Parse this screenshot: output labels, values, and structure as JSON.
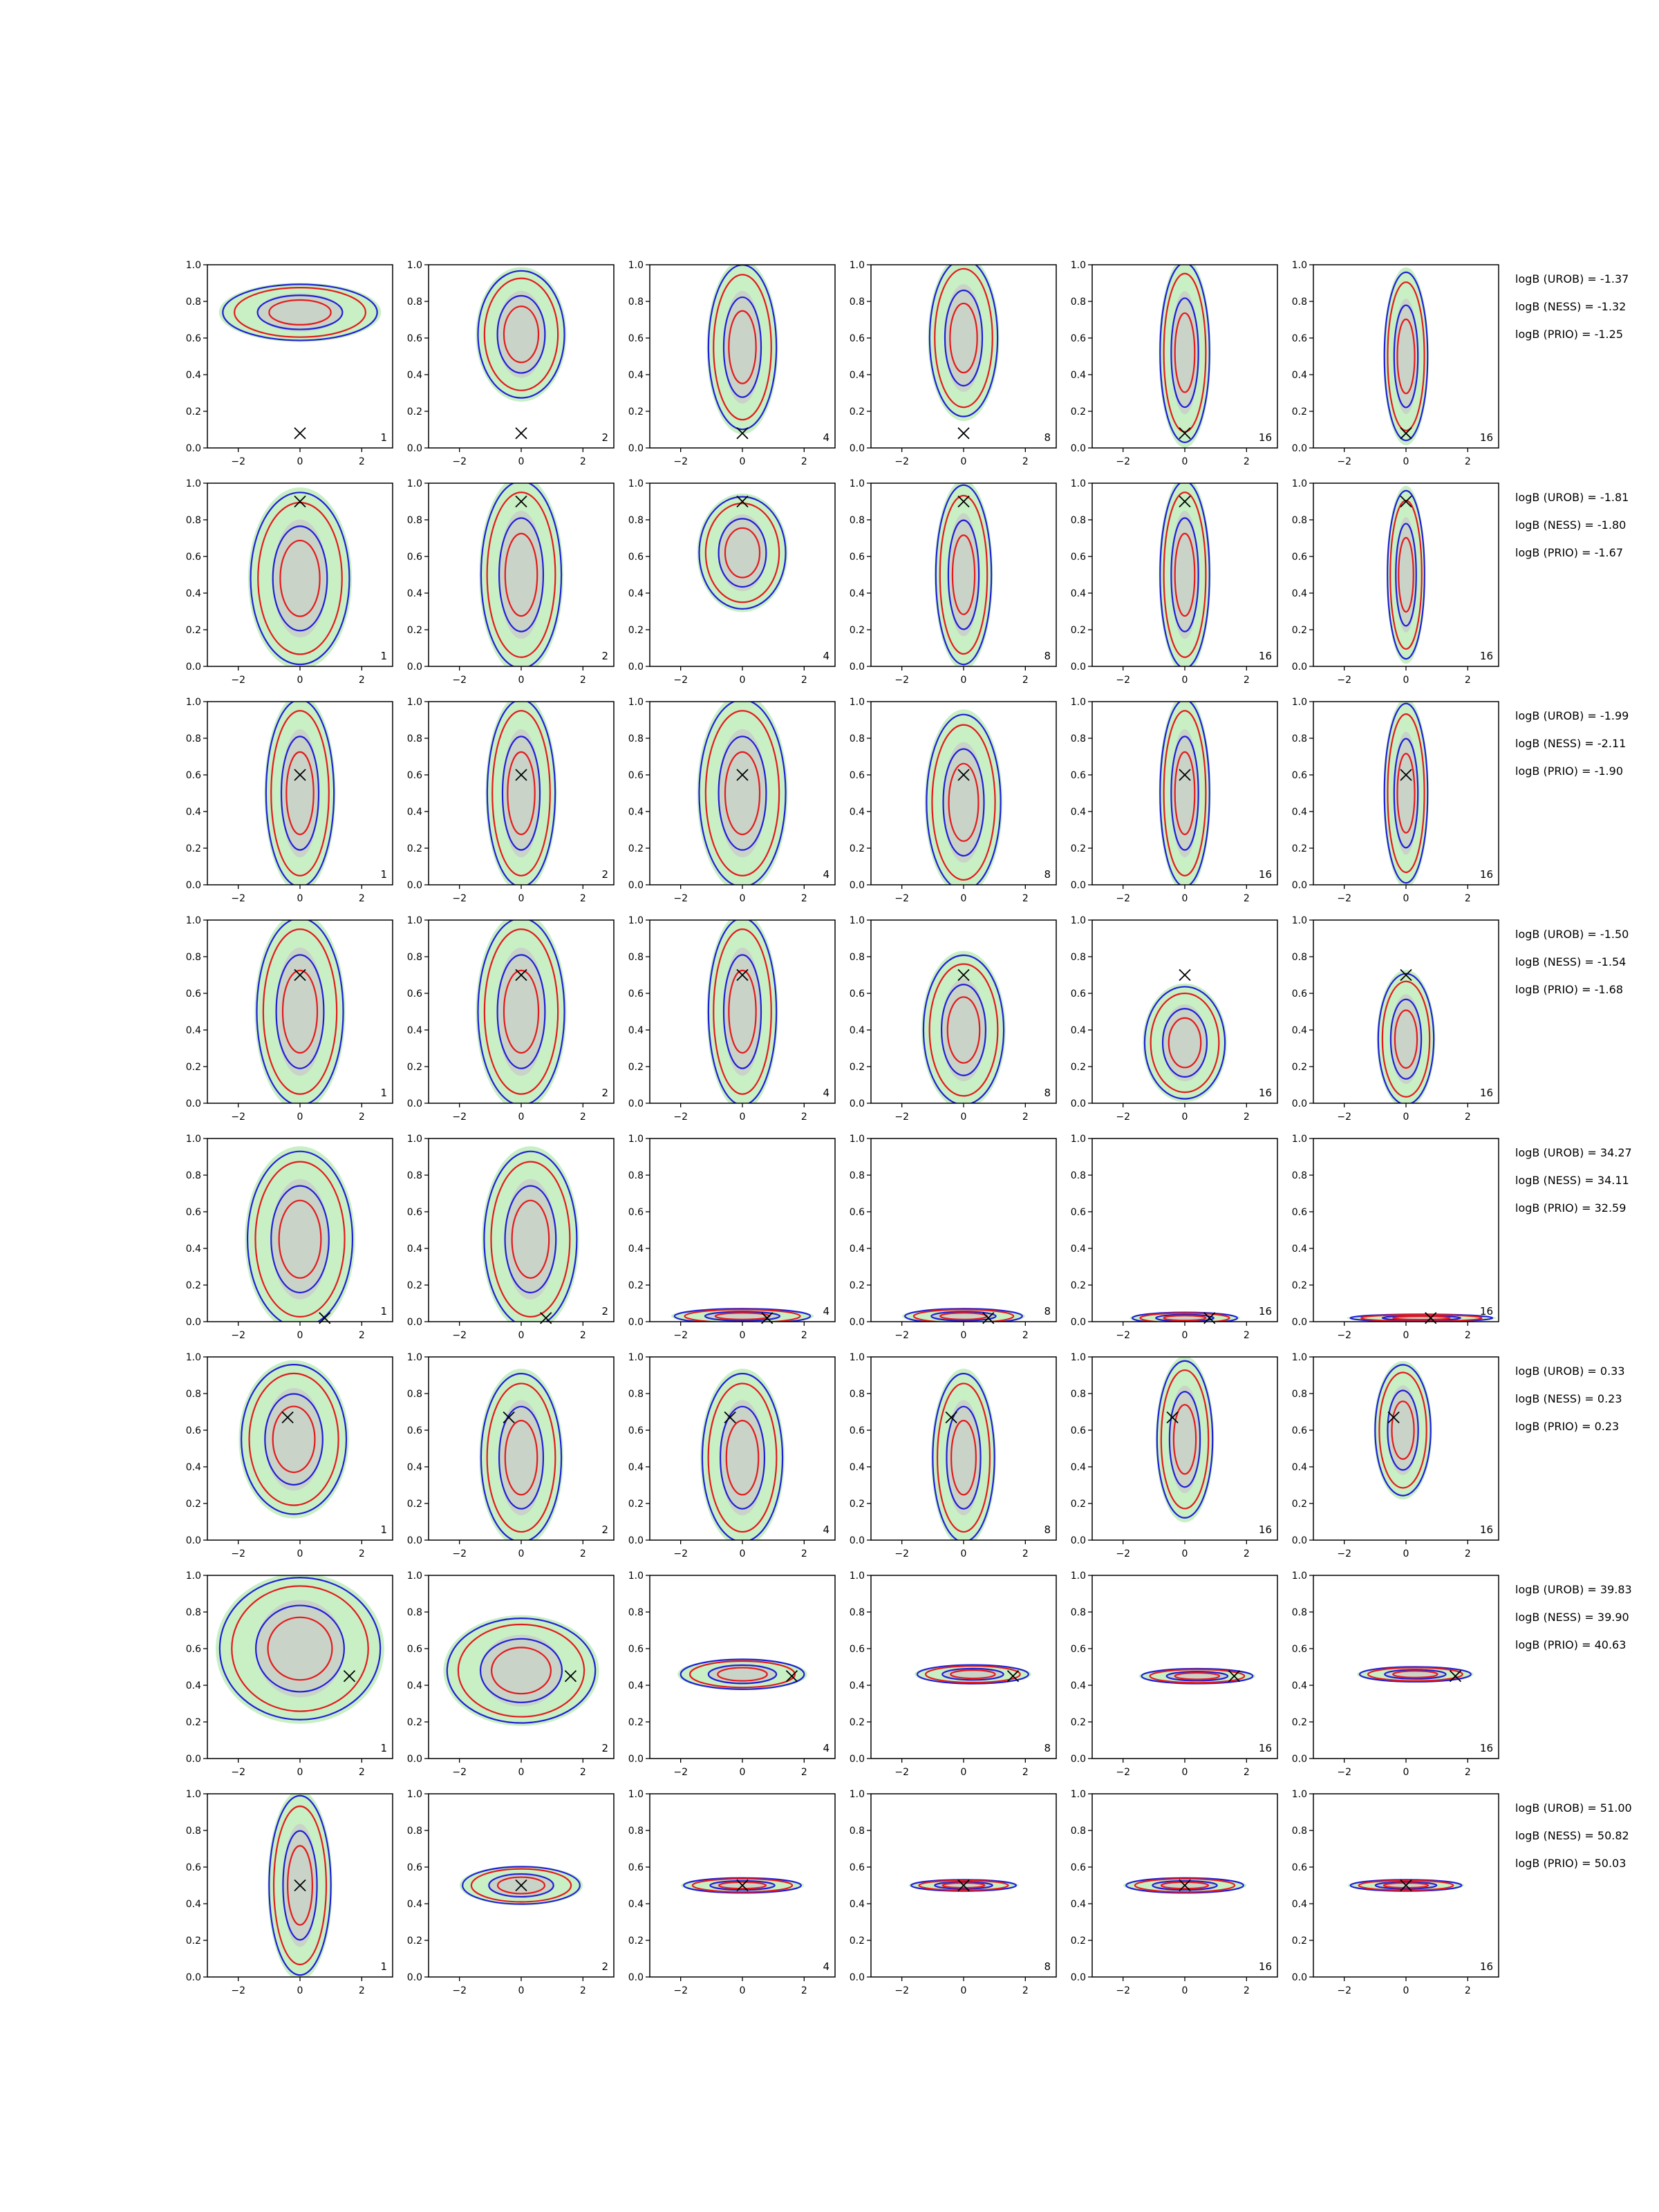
{
  "figure": {
    "rows": 8,
    "cols": 6
  },
  "chart_data": {
    "type": "contour",
    "xlim": [
      -3,
      3
    ],
    "ylim": [
      0,
      1
    ],
    "xticks": [
      -2,
      0,
      2
    ],
    "yticks": [
      "0.0",
      "0.2",
      "0.4",
      "0.6",
      "0.8",
      "1.0"
    ],
    "column_labels": [
      "1",
      "2",
      "4",
      "8",
      "16",
      "16"
    ],
    "colors": {
      "red_contour": "#e41a1c",
      "blue_contour": "#1f1fd6",
      "green_fill": "#c8f0c4",
      "gray_fill": "#c9c9c9"
    },
    "rows": [
      {
        "marker": [
          0.0,
          0.08
        ],
        "logb": [
          "logB (UROB) = -1.37",
          "logB (NESS) = -1.32",
          "logB (PRIO) = -1.25"
        ],
        "panels": [
          {
            "cx": 0.0,
            "cy": 0.74,
            "wx": 2.5,
            "wy": 0.15,
            "red": true,
            "blue": true
          },
          {
            "cx": 0.0,
            "cy": 0.62,
            "wx": 1.4,
            "wy": 0.34,
            "red": true,
            "blue": true
          },
          {
            "cx": 0.0,
            "cy": 0.55,
            "wx": 1.1,
            "wy": 0.44,
            "red": true,
            "blue": true
          },
          {
            "cx": 0.0,
            "cy": 0.6,
            "wx": 1.1,
            "wy": 0.42,
            "red": true,
            "blue": true
          },
          {
            "cx": 0.0,
            "cy": 0.52,
            "wx": 0.8,
            "wy": 0.48,
            "red": true,
            "blue": true
          },
          {
            "cx": 0.0,
            "cy": 0.5,
            "wx": 0.7,
            "wy": 0.45,
            "red": true,
            "blue": true
          }
        ]
      },
      {
        "marker": [
          0.0,
          0.9
        ],
        "logb": [
          "logB (UROB) = -1.81",
          "logB (NESS) = -1.80",
          "logB (PRIO) = -1.67"
        ],
        "panels": [
          {
            "cx": 0.0,
            "cy": 0.48,
            "wx": 1.6,
            "wy": 0.46,
            "red": true,
            "blue": true
          },
          {
            "cx": 0.0,
            "cy": 0.5,
            "wx": 1.3,
            "wy": 0.5,
            "red": true,
            "blue": true
          },
          {
            "cx": 0.0,
            "cy": 0.62,
            "wx": 1.4,
            "wy": 0.3,
            "red": true,
            "blue": true
          },
          {
            "cx": 0.0,
            "cy": 0.5,
            "wx": 0.9,
            "wy": 0.48,
            "red": true,
            "blue": true
          },
          {
            "cx": 0.0,
            "cy": 0.5,
            "wx": 0.8,
            "wy": 0.5,
            "red": true,
            "blue": true
          },
          {
            "cx": 0.0,
            "cy": 0.5,
            "wx": 0.6,
            "wy": 0.45,
            "red": true,
            "blue": true
          }
        ]
      },
      {
        "marker": [
          0.0,
          0.6
        ],
        "logb": [
          "logB (UROB) = -1.99",
          "logB (NESS) = -2.11",
          "logB (PRIO) = -1.90"
        ],
        "panels": [
          {
            "cx": 0.0,
            "cy": 0.5,
            "wx": 1.1,
            "wy": 0.5,
            "red": true,
            "blue": true
          },
          {
            "cx": 0.0,
            "cy": 0.5,
            "wx": 1.1,
            "wy": 0.5,
            "red": true,
            "blue": true
          },
          {
            "cx": 0.0,
            "cy": 0.5,
            "wx": 1.4,
            "wy": 0.5,
            "red": true,
            "blue": true
          },
          {
            "cx": 0.0,
            "cy": 0.45,
            "wx": 1.2,
            "wy": 0.47,
            "red": true,
            "blue": true
          },
          {
            "cx": 0.0,
            "cy": 0.5,
            "wx": 0.8,
            "wy": 0.5,
            "red": true,
            "blue": true
          },
          {
            "cx": 0.0,
            "cy": 0.5,
            "wx": 0.7,
            "wy": 0.48,
            "red": true,
            "blue": true
          }
        ]
      },
      {
        "marker": [
          0.0,
          0.7
        ],
        "logb": [
          "logB (UROB) = -1.50",
          "logB (NESS) = -1.54",
          "logB (PRIO) = -1.68"
        ],
        "panels": [
          {
            "cx": 0.0,
            "cy": 0.5,
            "wx": 1.4,
            "wy": 0.5,
            "red": true,
            "blue": true
          },
          {
            "cx": 0.0,
            "cy": 0.5,
            "wx": 1.4,
            "wy": 0.5,
            "red": true,
            "blue": true
          },
          {
            "cx": 0.0,
            "cy": 0.5,
            "wx": 1.1,
            "wy": 0.5,
            "red": true,
            "blue": true
          },
          {
            "cx": 0.0,
            "cy": 0.4,
            "wx": 1.3,
            "wy": 0.4,
            "red": true,
            "blue": true
          },
          {
            "cx": 0.0,
            "cy": 0.33,
            "wx": 1.3,
            "wy": 0.3,
            "red": true,
            "blue": true
          },
          {
            "cx": 0.0,
            "cy": 0.35,
            "wx": 0.9,
            "wy": 0.35,
            "red": true,
            "blue": true
          }
        ]
      },
      {
        "marker": [
          0.8,
          0.02
        ],
        "logb": [
          "logB (UROB) = 34.27",
          "logB (NESS) = 34.11",
          "logB (PRIO) = 32.59"
        ],
        "panels": [
          {
            "cx": 0.0,
            "cy": 0.45,
            "wx": 1.7,
            "wy": 0.47,
            "red": true,
            "blue": true
          },
          {
            "cx": 0.3,
            "cy": 0.45,
            "wx": 1.5,
            "wy": 0.47,
            "red": true,
            "blue": true
          },
          {
            "cx": 0.0,
            "cy": 0.03,
            "wx": 2.2,
            "wy": 0.04,
            "red": true,
            "blue": true
          },
          {
            "cx": 0.0,
            "cy": 0.03,
            "wx": 1.9,
            "wy": 0.04,
            "red": true,
            "blue": true
          },
          {
            "cx": 0.0,
            "cy": 0.02,
            "wx": 1.7,
            "wy": 0.03,
            "red": true,
            "blue": true
          },
          {
            "cx": 0.5,
            "cy": 0.02,
            "wx": 2.3,
            "wy": 0.02,
            "red": true,
            "blue": true
          }
        ]
      },
      {
        "marker": [
          -0.4,
          0.67
        ],
        "logb": [
          "logB (UROB) = 0.33",
          "logB (NESS) = 0.23",
          "logB (PRIO) = 0.23"
        ],
        "panels": [
          {
            "cx": -0.2,
            "cy": 0.55,
            "wx": 1.7,
            "wy": 0.4,
            "red": true,
            "blue": true
          },
          {
            "cx": 0.0,
            "cy": 0.45,
            "wx": 1.3,
            "wy": 0.45,
            "red": true,
            "blue": true
          },
          {
            "cx": 0.0,
            "cy": 0.45,
            "wx": 1.3,
            "wy": 0.45,
            "red": true,
            "blue": true
          },
          {
            "cx": 0.0,
            "cy": 0.45,
            "wx": 1.0,
            "wy": 0.45,
            "red": true,
            "blue": true
          },
          {
            "cx": 0.0,
            "cy": 0.55,
            "wx": 0.9,
            "wy": 0.42,
            "red": true,
            "blue": true
          },
          {
            "cx": -0.1,
            "cy": 0.6,
            "wx": 0.9,
            "wy": 0.35,
            "red": true,
            "blue": true
          }
        ]
      },
      {
        "marker": [
          1.6,
          0.45
        ],
        "logb": [
          "logB (UROB) = 39.83",
          "logB (NESS) = 39.90",
          "logB (PRIO) = 40.63"
        ],
        "panels": [
          {
            "cx": 0.0,
            "cy": 0.6,
            "wx": 2.6,
            "wy": 0.38,
            "red": true,
            "blue": true
          },
          {
            "cx": 0.0,
            "cy": 0.48,
            "wx": 2.4,
            "wy": 0.28,
            "red": true,
            "blue": true
          },
          {
            "cx": 0.0,
            "cy": 0.46,
            "wx": 2.0,
            "wy": 0.08,
            "red": true,
            "blue": true
          },
          {
            "cx": 0.3,
            "cy": 0.46,
            "wx": 1.8,
            "wy": 0.05,
            "red": true,
            "blue": true
          },
          {
            "cx": 0.4,
            "cy": 0.45,
            "wx": 1.8,
            "wy": 0.04,
            "red": true,
            "blue": true
          },
          {
            "cx": 0.3,
            "cy": 0.46,
            "wx": 1.8,
            "wy": 0.04,
            "red": true,
            "blue": true
          }
        ]
      },
      {
        "marker": [
          0.0,
          0.5
        ],
        "logb": [
          "logB (UROB) = 51.00",
          "logB (NESS) = 50.82",
          "logB (PRIO) = 50.03"
        ],
        "panels": [
          {
            "cx": 0.0,
            "cy": 0.5,
            "wx": 1.0,
            "wy": 0.48,
            "red": true,
            "blue": true
          },
          {
            "cx": 0.0,
            "cy": 0.5,
            "wx": 1.9,
            "wy": 0.1,
            "red": true,
            "blue": true
          },
          {
            "cx": 0.0,
            "cy": 0.5,
            "wx": 1.9,
            "wy": 0.04,
            "red": true,
            "blue": true
          },
          {
            "cx": 0.0,
            "cy": 0.5,
            "wx": 1.7,
            "wy": 0.03,
            "red": true,
            "blue": true
          },
          {
            "cx": 0.0,
            "cy": 0.5,
            "wx": 1.9,
            "wy": 0.04,
            "red": true,
            "blue": true
          },
          {
            "cx": 0.0,
            "cy": 0.5,
            "wx": 1.8,
            "wy": 0.03,
            "red": true,
            "blue": true
          }
        ]
      }
    ]
  }
}
